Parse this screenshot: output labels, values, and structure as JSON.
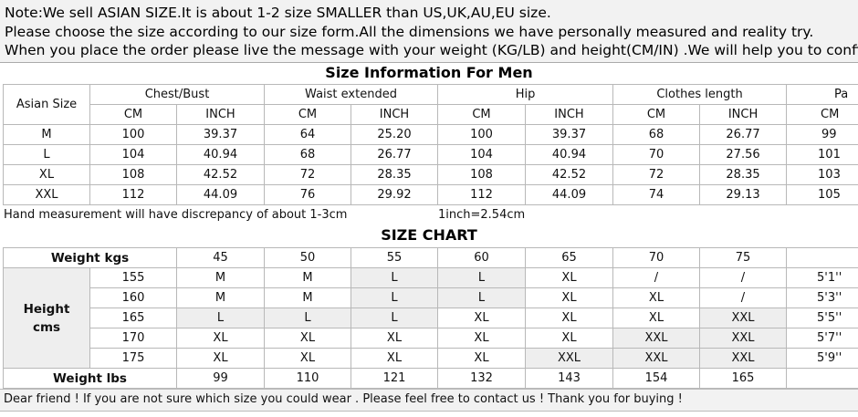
{
  "notes": [
    "Note:We sell ASIAN SIZE.It is about 1-2 size SMALLER than US,UK,AU,EU size.",
    "Please choose the size according to our size form.All the dimensions we have personally measured and reality try.",
    "When you place the order please live the message with your weight (KG/LB) and height(CM/IN) .We will help you to confirm the"
  ],
  "men_table": {
    "title": "Size Information For Men",
    "size_header": "Asian Size",
    "groups": [
      "Chest/Bust",
      "Waist  extended",
      "Hip",
      "Clothes length",
      "Pa"
    ],
    "units": [
      "CM",
      "INCH",
      "CM",
      "INCH",
      "CM",
      "INCH",
      "CM",
      "INCH",
      "CM"
    ],
    "rows": [
      {
        "size": "M",
        "values": [
          "100",
          "39.37",
          "64",
          "25.20",
          "100",
          "39.37",
          "68",
          "26.77",
          "99"
        ]
      },
      {
        "size": "L",
        "values": [
          "104",
          "40.94",
          "68",
          "26.77",
          "104",
          "40.94",
          "70",
          "27.56",
          "101"
        ]
      },
      {
        "size": "XL",
        "values": [
          "108",
          "42.52",
          "72",
          "28.35",
          "108",
          "42.52",
          "72",
          "28.35",
          "103"
        ]
      },
      {
        "size": "XXL",
        "values": [
          "112",
          "44.09",
          "76",
          "29.92",
          "112",
          "44.09",
          "74",
          "29.13",
          "105"
        ]
      }
    ]
  },
  "measure_note": "Hand measurement will have discrepancy of about 1-3cm",
  "inch_note": "1inch=2.54cm",
  "size_chart": {
    "title": "SIZE CHART",
    "weight_kgs_label": "Weight  kgs",
    "weights_kg": [
      "45",
      "50",
      "55",
      "60",
      "65",
      "70",
      "75"
    ],
    "height_label": "Height cms",
    "rows": [
      {
        "cm": "155",
        "sizes": [
          "M",
          "M",
          "L",
          "L",
          "XL",
          "/",
          "/"
        ],
        "ft": "5'1''"
      },
      {
        "cm": "160",
        "sizes": [
          "M",
          "M",
          "L",
          "L",
          "XL",
          "XL",
          "/"
        ],
        "ft": "5'3''"
      },
      {
        "cm": "165",
        "sizes": [
          "L",
          "L",
          "L",
          "XL",
          "XL",
          "XL",
          "XXL"
        ],
        "ft": "5'5''"
      },
      {
        "cm": "170",
        "sizes": [
          "XL",
          "XL",
          "XL",
          "XL",
          "XL",
          "XXL",
          "XXL"
        ],
        "ft": "5'7''"
      },
      {
        "cm": "175",
        "sizes": [
          "XL",
          "XL",
          "XL",
          "XL",
          "XXL",
          "XXL",
          "XXL"
        ],
        "ft": "5'9''"
      }
    ],
    "weight_lbs_label": "Weight lbs",
    "weights_lb": [
      "99",
      "110",
      "121",
      "132",
      "143",
      "154",
      "165"
    ]
  },
  "footer": "Dear friend ! If you are not sure which size you could wear . Please feel free to contact us ! Thank you for buying !"
}
